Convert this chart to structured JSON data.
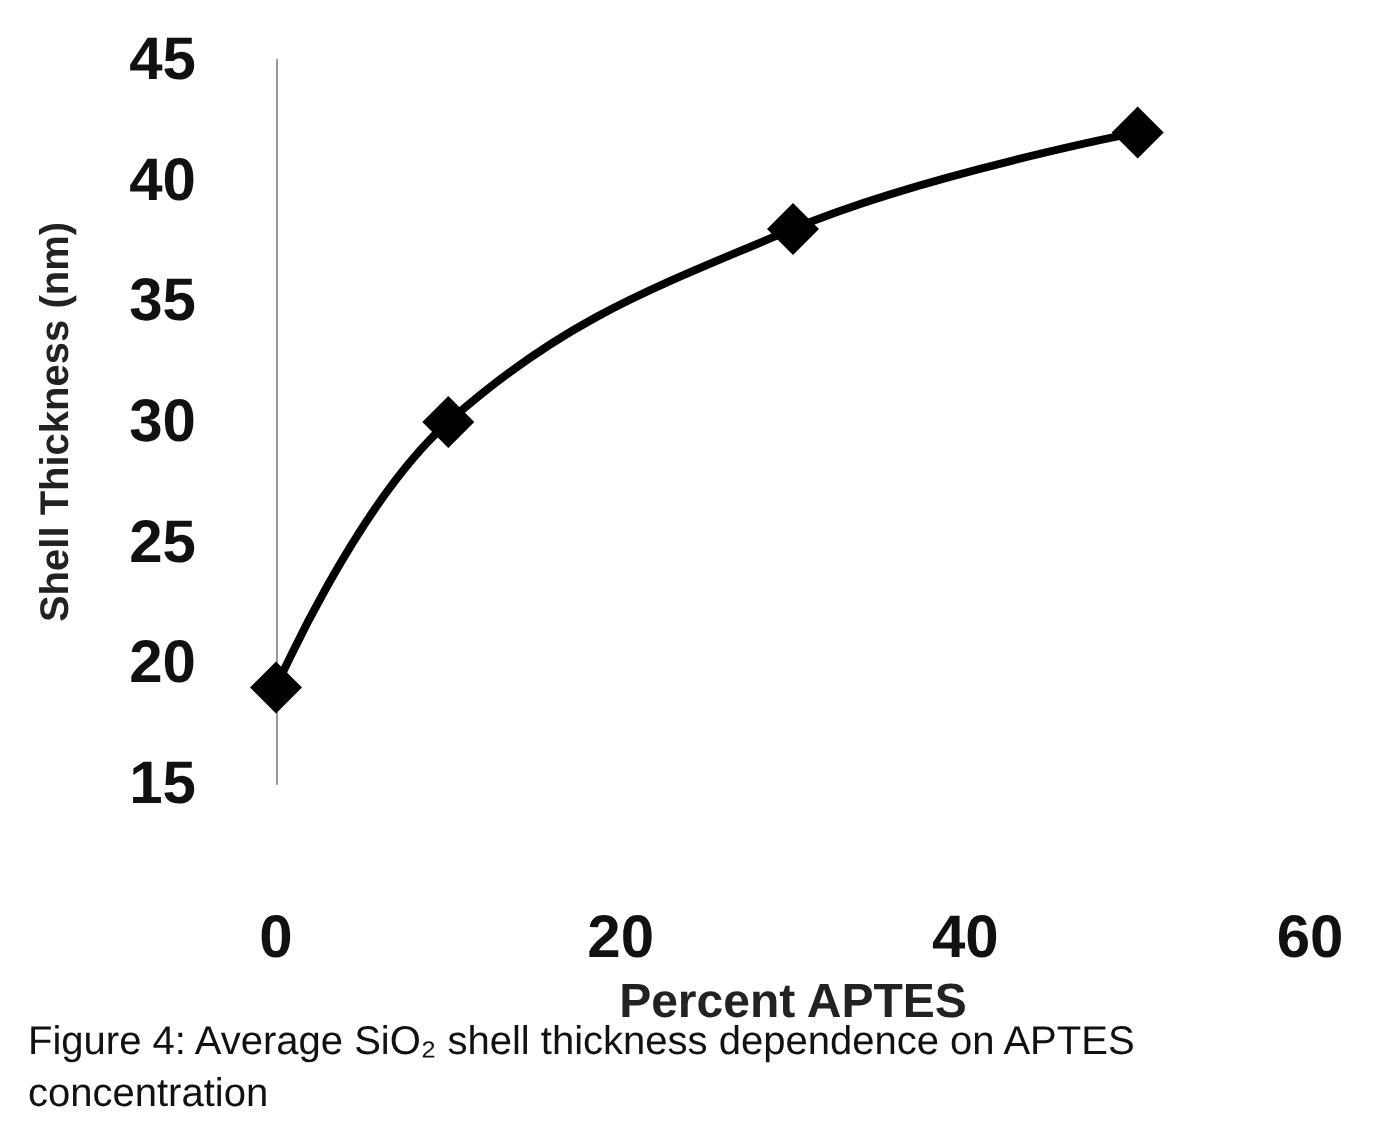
{
  "chart_data": {
    "type": "line",
    "xlabel": "Percent APTES",
    "ylabel": "Shell Thickness (nm)",
    "x": [
      0,
      10,
      30,
      50
    ],
    "series": [
      {
        "color": "#000000",
        "values": [
          19,
          30,
          38,
          42
        ]
      }
    ],
    "xlim": [
      0,
      60
    ],
    "xticks": [
      0,
      20,
      40,
      60
    ],
    "ylim": [
      15,
      45
    ],
    "yticks": [
      15,
      20,
      25,
      30,
      35,
      40,
      45
    ],
    "grid": false,
    "marker": "diamond",
    "line_style": "solid",
    "annotations": [
      "Figure 4: Average SiO₂ shell thickness dependence on APTES concentration"
    ]
  }
}
